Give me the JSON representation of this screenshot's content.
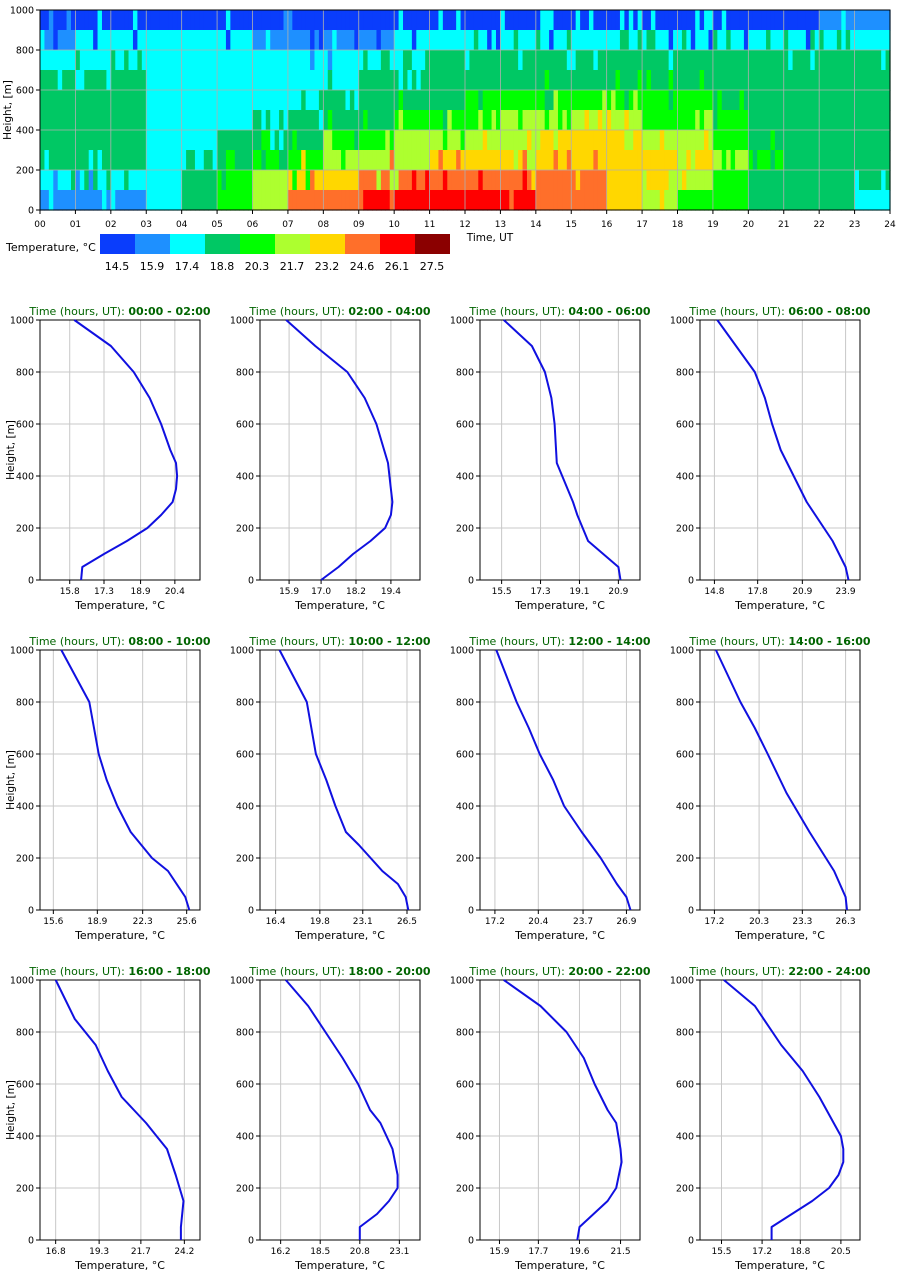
{
  "heatmap": {
    "ylabel": "Height, [m]",
    "xlabel": "Time, UT",
    "yticks": [
      "0",
      "200",
      "400",
      "600",
      "800",
      "1000"
    ],
    "xticks": [
      "00",
      "01",
      "02",
      "03",
      "04",
      "05",
      "06",
      "07",
      "08",
      "09",
      "10",
      "11",
      "12",
      "13",
      "14",
      "15",
      "16",
      "17",
      "18",
      "19",
      "20",
      "21",
      "22",
      "23",
      "24"
    ]
  },
  "legend": {
    "title": "Temperature, °C",
    "labels": [
      "14.5",
      "15.9",
      "17.4",
      "18.8",
      "20.3",
      "21.7",
      "23.2",
      "24.6",
      "26.1",
      "27.5"
    ],
    "colors": [
      "#0a3dfc",
      "#1e90ff",
      "#00ffff",
      "#00c864",
      "#00ff00",
      "#adff2f",
      "#ffd700",
      "#ff6f2a",
      "#ff0000",
      "#8b0000"
    ]
  },
  "profile_ylabel": "Height, [m]",
  "profile_xlabel": "Temperature, °C",
  "title_prefix": "Time (hours, UT):",
  "line_color": "#1010e0",
  "title_color": "#006400",
  "chart_data": [
    {
      "type": "heatmap",
      "xlabel": "Time, UT",
      "ylabel": "Height, [m]",
      "xlim": [
        0,
        24
      ],
      "ylim": [
        0,
        1000
      ],
      "colorbar_title": "Temperature, °C",
      "colorbar_levels": [
        14.5,
        15.9,
        17.4,
        18.8,
        20.3,
        21.7,
        23.2,
        24.6,
        26.1,
        27.5
      ],
      "note_heights_m": [
        0,
        25,
        75,
        150,
        250,
        350,
        450,
        550,
        650,
        750,
        850,
        950,
        1000
      ],
      "time_hours": [
        0,
        1,
        2,
        3,
        4,
        5,
        6,
        7,
        8,
        9,
        10,
        11,
        12,
        13,
        14,
        15,
        16,
        17,
        18,
        19,
        20,
        21,
        22,
        23,
        24
      ],
      "cells_by_height_from_top": [
        [
          0,
          0,
          0,
          0,
          0,
          0,
          0,
          0,
          0,
          0,
          0,
          0,
          0,
          0,
          0,
          0,
          0,
          0,
          0,
          0,
          0,
          0,
          1,
          1
        ],
        [
          1,
          2,
          2,
          2,
          2,
          2,
          1,
          1,
          1,
          1,
          2,
          2,
          2,
          2,
          2,
          2,
          2,
          2,
          2,
          2,
          2,
          2,
          2,
          2
        ],
        [
          2,
          2,
          2,
          2,
          2,
          2,
          2,
          2,
          2,
          2,
          2,
          3,
          3,
          3,
          3,
          3,
          3,
          3,
          3,
          3,
          3,
          3,
          3,
          3
        ],
        [
          3,
          3,
          3,
          2,
          2,
          2,
          2,
          2,
          2,
          3,
          3,
          3,
          3,
          3,
          3,
          3,
          3,
          3,
          3,
          3,
          3,
          3,
          3,
          3
        ],
        [
          3,
          3,
          3,
          2,
          2,
          2,
          2,
          2,
          3,
          3,
          3,
          3,
          4,
          4,
          4,
          4,
          4,
          4,
          4,
          3,
          3,
          3,
          3,
          3
        ],
        [
          3,
          3,
          3,
          2,
          2,
          2,
          2,
          3,
          3,
          3,
          4,
          4,
          4,
          5,
          5,
          5,
          5,
          4,
          4,
          4,
          3,
          3,
          3,
          3
        ],
        [
          3,
          3,
          3,
          2,
          2,
          3,
          3,
          3,
          4,
          4,
          5,
          5,
          5,
          5,
          6,
          6,
          6,
          5,
          5,
          4,
          3,
          3,
          3,
          3
        ],
        [
          3,
          3,
          3,
          2,
          2,
          3,
          4,
          4,
          5,
          5,
          5,
          6,
          6,
          6,
          6,
          6,
          6,
          6,
          6,
          5,
          4,
          3,
          3,
          3
        ],
        [
          2,
          2,
          2,
          2,
          3,
          4,
          5,
          6,
          6,
          7,
          7,
          7,
          7,
          7,
          7,
          7,
          6,
          6,
          5,
          4,
          3,
          3,
          3,
          3
        ],
        [
          1,
          1,
          1,
          2,
          3,
          4,
          5,
          7,
          7,
          8,
          8,
          8,
          8,
          8,
          7,
          7,
          6,
          5,
          4,
          4,
          3,
          3,
          3,
          2
        ]
      ]
    },
    {
      "type": "line",
      "title": "Time (hours, UT): 00:00 - 02:00",
      "xlabel": "Temperature, °C",
      "ylabel": "Height, [m]",
      "xlim": [
        14.5,
        21.5
      ],
      "xticks": [
        15.8,
        17.3,
        18.9,
        20.4
      ],
      "ylim": [
        0,
        1000
      ],
      "x": [
        16.3,
        16.35,
        17.3,
        18.3,
        19.2,
        19.8,
        20.3,
        20.45,
        20.5,
        20.45,
        20.2,
        19.8,
        19.3,
        18.6,
        17.6,
        16.0
      ],
      "y": [
        0,
        50,
        100,
        150,
        200,
        250,
        300,
        350,
        400,
        450,
        500,
        600,
        700,
        800,
        900,
        1000
      ]
    },
    {
      "type": "line",
      "title": "Time (hours, UT): 02:00 - 04:00",
      "xlabel": "Temperature, °C",
      "ylabel": "Height, [m]",
      "xlim": [
        14.9,
        20.4
      ],
      "xticks": [
        15.9,
        17.0,
        18.2,
        19.4
      ],
      "ylim": [
        0,
        1000
      ],
      "x": [
        17.0,
        17.6,
        18.1,
        18.7,
        19.2,
        19.4,
        19.45,
        19.4,
        19.3,
        18.9,
        18.5,
        17.9,
        16.8,
        15.8
      ],
      "y": [
        0,
        50,
        100,
        150,
        200,
        250,
        300,
        350,
        450,
        600,
        700,
        800,
        900,
        1000
      ]
    },
    {
      "type": "line",
      "title": "Time (hours, UT): 04:00 - 06:00",
      "xlabel": "Temperature, °C",
      "ylabel": "Height, [m]",
      "xlim": [
        14.5,
        21.9
      ],
      "xticks": [
        15.5,
        17.3,
        19.1,
        20.9
      ],
      "ylim": [
        0,
        1000
      ],
      "x": [
        21.0,
        20.9,
        19.5,
        19.0,
        18.8,
        18.3,
        18.05,
        17.95,
        17.8,
        17.5,
        16.9,
        15.6
      ],
      "y": [
        0,
        50,
        150,
        250,
        300,
        400,
        450,
        600,
        700,
        800,
        900,
        1000
      ]
    },
    {
      "type": "line",
      "title": "Time (hours, UT): 06:00 - 08:00",
      "xlabel": "Temperature, °C",
      "ylabel": "Height, [m]",
      "xlim": [
        13.8,
        24.9
      ],
      "xticks": [
        14.8,
        17.8,
        20.9,
        23.9
      ],
      "ylim": [
        0,
        1000
      ],
      "x": [
        24.1,
        23.9,
        23.0,
        21.2,
        20.3,
        19.4,
        18.8,
        18.3,
        17.6,
        15.0
      ],
      "y": [
        0,
        50,
        150,
        300,
        400,
        500,
        600,
        700,
        800,
        1000
      ]
    },
    {
      "type": "line",
      "title": "Time (hours, UT): 08:00 - 10:00",
      "xlabel": "Temperature, °C",
      "ylabel": "Height, [m]",
      "xlim": [
        14.6,
        26.6
      ],
      "xticks": [
        15.6,
        18.9,
        22.3,
        25.6
      ],
      "ylim": [
        0,
        1000
      ],
      "x": [
        25.8,
        25.5,
        24.2,
        23.0,
        21.4,
        20.4,
        19.6,
        19.0,
        18.3,
        16.2
      ],
      "y": [
        0,
        50,
        150,
        200,
        300,
        400,
        500,
        600,
        800,
        1000
      ]
    },
    {
      "type": "line",
      "title": "Time (hours, UT): 10:00 - 12:00",
      "xlabel": "Temperature, °C",
      "ylabel": "Height, [m]",
      "xlim": [
        15.2,
        27.5
      ],
      "xticks": [
        16.4,
        19.8,
        23.1,
        26.5
      ],
      "ylim": [
        0,
        1000
      ],
      "x": [
        26.6,
        26.4,
        25.8,
        24.6,
        22.8,
        21.8,
        21.0,
        20.3,
        19.5,
        18.8,
        16.7
      ],
      "y": [
        0,
        50,
        100,
        150,
        250,
        300,
        400,
        500,
        600,
        800,
        1000
      ]
    },
    {
      "type": "line",
      "title": "Time (hours, UT): 12:00 - 14:00",
      "xlabel": "Temperature, °C",
      "ylabel": "Height, [m]",
      "xlim": [
        16.1,
        27.9
      ],
      "xticks": [
        17.2,
        20.4,
        23.7,
        26.9
      ],
      "ylim": [
        0,
        1000
      ],
      "x": [
        27.2,
        26.9,
        26.2,
        25.0,
        23.6,
        22.3,
        21.5,
        20.5,
        19.7,
        18.8,
        17.3
      ],
      "y": [
        0,
        50,
        100,
        200,
        300,
        400,
        500,
        600,
        700,
        800,
        1000
      ]
    },
    {
      "type": "line",
      "title": "Time (hours, UT): 14:00 - 16:00",
      "xlabel": "Temperature, °C",
      "ylabel": "Height, [m]",
      "xlim": [
        16.2,
        27.3
      ],
      "xticks": [
        17.2,
        20.3,
        23.3,
        26.3
      ],
      "ylim": [
        0,
        1000
      ],
      "x": [
        26.4,
        26.3,
        25.5,
        23.8,
        22.2,
        20.9,
        20.0,
        19.0,
        17.3
      ],
      "y": [
        0,
        50,
        150,
        300,
        450,
        600,
        700,
        800,
        1000
      ]
    },
    {
      "type": "line",
      "title": "Time (hours, UT): 16:00 - 18:00",
      "xlabel": "Temperature, °C",
      "ylabel": "Height, [m]",
      "xlim": [
        15.9,
        25.1
      ],
      "xticks": [
        16.8,
        19.3,
        21.7,
        24.2
      ],
      "ylim": [
        0,
        1000
      ],
      "x": [
        24.0,
        24.0,
        24.15,
        23.7,
        23.2,
        22.6,
        22.0,
        21.3,
        20.6,
        19.8,
        19.1,
        17.9,
        16.8
      ],
      "y": [
        0,
        50,
        150,
        250,
        350,
        400,
        450,
        500,
        550,
        650,
        750,
        850,
        1000
      ]
    },
    {
      "type": "line",
      "title": "Time (hours, UT): 18:00 - 20:00",
      "xlabel": "Temperature, °C",
      "ylabel": "Height, [m]",
      "xlim": [
        15.0,
        24.3
      ],
      "xticks": [
        16.2,
        18.5,
        20.8,
        23.1
      ],
      "ylim": [
        0,
        1000
      ],
      "x": [
        20.8,
        20.8,
        21.8,
        22.5,
        23.0,
        23.0,
        22.7,
        22.0,
        21.4,
        20.7,
        19.8,
        18.8,
        17.8,
        16.5
      ],
      "y": [
        0,
        50,
        100,
        150,
        200,
        250,
        350,
        450,
        500,
        600,
        700,
        800,
        900,
        1000
      ]
    },
    {
      "type": "line",
      "title": "Time (hours, UT): 20:00 - 22:00",
      "xlabel": "Temperature, °C",
      "ylabel": "Height, [m]",
      "xlim": [
        15.0,
        22.4
      ],
      "xticks": [
        15.9,
        17.7,
        19.6,
        21.5
      ],
      "ylim": [
        0,
        1000
      ],
      "x": [
        19.5,
        19.6,
        20.9,
        21.3,
        21.55,
        21.5,
        21.3,
        20.9,
        20.3,
        19.8,
        19.0,
        17.8,
        16.1
      ],
      "y": [
        0,
        50,
        150,
        200,
        300,
        350,
        450,
        500,
        600,
        700,
        800,
        900,
        1000
      ]
    },
    {
      "type": "line",
      "title": "Time (hours, UT): 22:00 - 24:00",
      "xlabel": "Temperature, °C",
      "ylabel": "Height, [m]",
      "xlim": [
        14.6,
        21.3
      ],
      "xticks": [
        15.5,
        17.2,
        18.8,
        20.5
      ],
      "ylim": [
        0,
        1000
      ],
      "x": [
        17.6,
        17.6,
        19.3,
        20.0,
        20.4,
        20.6,
        20.6,
        20.5,
        20.2,
        19.6,
        18.9,
        18.0,
        16.9,
        15.6
      ],
      "y": [
        0,
        50,
        150,
        200,
        250,
        300,
        350,
        400,
        450,
        550,
        650,
        750,
        900,
        1000
      ]
    }
  ]
}
